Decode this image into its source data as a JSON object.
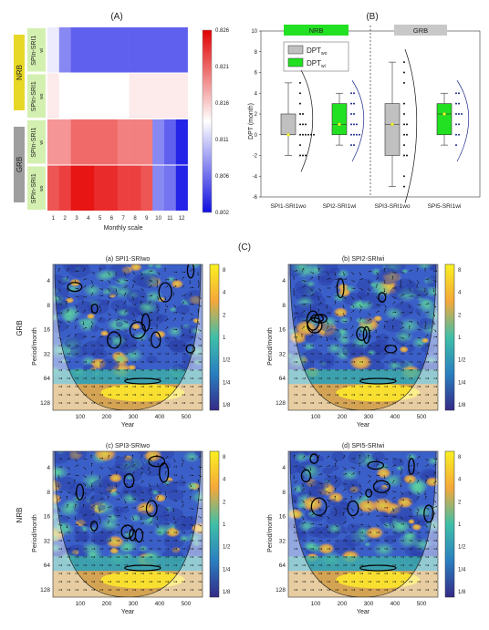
{
  "panel_labels": {
    "A": "(A)",
    "B": "(B)",
    "C": "(C)"
  },
  "chart_data": [
    {
      "type": "heatmap",
      "panel": "A",
      "xlabel": "Monthly scale",
      "x": [
        "1",
        "2",
        "3",
        "4",
        "5",
        "6",
        "7",
        "8",
        "9",
        "10",
        "11",
        "12"
      ],
      "rows": [
        "SPIn-SRI1 wi",
        "SPIn-SRI1 wo",
        "SPIn-SRI1 wi",
        "SPIn-SRI1 wo"
      ],
      "row_main": [
        "SPIn-SRI1",
        "SPIn-SRI1",
        "SPIn-SRI1",
        "SPIn-SRI1"
      ],
      "row_sub": [
        "wi",
        "wo",
        "wi",
        "wo"
      ],
      "groups": [
        {
          "label": "NRB",
          "rows": [
            0,
            1
          ],
          "color": "#e8d826"
        },
        {
          "label": "GRB",
          "rows": [
            2,
            3
          ],
          "color": "#9e9e9e"
        }
      ],
      "values": [
        [
          0.813,
          0.808,
          0.806,
          0.806,
          0.806,
          0.806,
          0.806,
          0.806,
          0.806,
          0.806,
          0.806,
          0.806
        ],
        [
          0.815,
          0.814,
          0.814,
          0.814,
          0.814,
          0.814,
          0.814,
          0.815,
          0.815,
          0.815,
          0.815,
          0.815
        ],
        [
          0.819,
          0.819,
          0.821,
          0.821,
          0.821,
          0.821,
          0.82,
          0.82,
          0.82,
          0.808,
          0.806,
          0.803
        ],
        [
          0.822,
          0.823,
          0.825,
          0.825,
          0.824,
          0.824,
          0.823,
          0.823,
          0.822,
          0.808,
          0.807,
          0.803
        ]
      ],
      "colorbar_ticks": [
        "0.826",
        "0.821",
        "0.816",
        "0.811",
        "0.806",
        "0.802"
      ],
      "vmin": 0.802,
      "vmax": 0.826
    },
    {
      "type": "box",
      "panel": "B",
      "ylabel": "DPT (month)",
      "ylim": [
        -6,
        10
      ],
      "yticks": [
        "10",
        "8",
        "6",
        "4",
        "2",
        "0",
        "-2",
        "-4",
        "-6"
      ],
      "categories": [
        "SPI1-SRI1wo",
        "SPI2-SRI1wi",
        "SPI3-SRI1wo",
        "SPI5-SRI1wi"
      ],
      "groups": [
        {
          "label": "NRB",
          "color": "#22e022"
        },
        {
          "label": "GRB",
          "color": "#c8c8c8"
        }
      ],
      "legend": [
        {
          "main": "DPT",
          "sub": "wo",
          "color": "#c0c0c0"
        },
        {
          "main": "DPT",
          "sub": "wi",
          "color": "#22e022"
        }
      ],
      "boxes": [
        {
          "q1": 0,
          "median": 0,
          "q3": 2,
          "min": -2,
          "max": 5,
          "mean": 0,
          "fill": "#c0c0c0",
          "points": [
            5,
            4,
            3,
            2,
            2,
            1,
            1,
            1,
            0,
            0,
            0,
            0,
            0,
            0,
            -1,
            -2,
            -2,
            -2
          ]
        },
        {
          "q1": 0,
          "median": 1,
          "q3": 3,
          "min": -1,
          "max": 4,
          "mean": 1,
          "fill": "#22e022",
          "points": [
            4,
            4,
            3,
            3,
            2,
            2,
            1,
            1,
            1,
            0,
            0,
            0,
            0,
            -1,
            -1
          ]
        },
        {
          "q1": -2,
          "median": 1,
          "q3": 3,
          "min": -5,
          "max": 7,
          "mean": 1,
          "fill": "#c0c0c0",
          "points": [
            7,
            6,
            5,
            3,
            2,
            1,
            1,
            0,
            0,
            -1,
            -2,
            -2,
            -4,
            -5
          ]
        },
        {
          "q1": 0,
          "median": 2,
          "q3": 3,
          "min": -1,
          "max": 4,
          "mean": 2,
          "fill": "#22e022",
          "points": [
            4,
            4,
            3,
            3,
            2,
            2,
            2,
            1,
            1,
            0,
            0,
            -1
          ]
        }
      ]
    },
    {
      "type": "heatmap",
      "panel": "C",
      "subtitles": [
        "(a) SPI1-SRIwo",
        "(b) SPI2-SRIwi",
        "(c) SPI3-SRIwo",
        "(d) SPI5-SRIwi"
      ],
      "xlabel": "Year",
      "ylabel": "Period/month",
      "row_labels": [
        "GRB",
        "NRB"
      ],
      "yticks": [
        "4",
        "8",
        "16",
        "32",
        "64",
        "128"
      ],
      "xticks": [
        "100",
        "200",
        "300",
        "400",
        "500"
      ],
      "colorbar_ticks": [
        "8",
        "4",
        "2",
        "1",
        "1/2",
        "1/4",
        "1/8"
      ]
    }
  ]
}
